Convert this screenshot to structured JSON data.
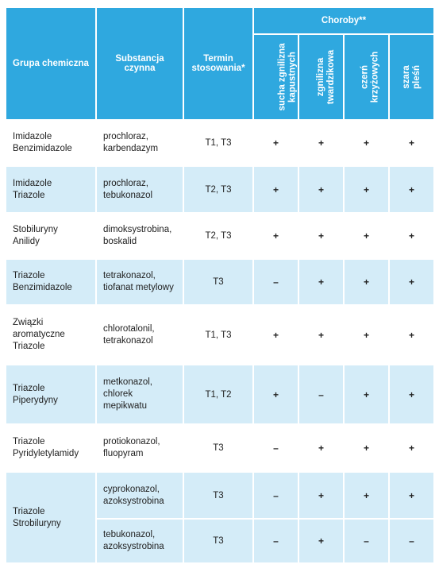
{
  "header": {
    "group": "Grupa chemiczna",
    "substance_line1": "Substancja",
    "substance_line2": "czynna",
    "term_line1": "Termin",
    "term_line2": "stosowania*",
    "diseases": "Choroby**",
    "disease_cols": [
      {
        "line1": "sucha zgnilizna",
        "line2": "kapustnych"
      },
      {
        "line1": "zgnilizna",
        "line2": "twardzikowa"
      },
      {
        "line1": "czerń",
        "line2": "krzyżowych"
      },
      {
        "line1": "szara",
        "line2": "pleśń"
      }
    ]
  },
  "rows": [
    {
      "group": [
        "Imidazole",
        "Benzimidazole"
      ],
      "substance": [
        "prochloraz,",
        "karbendazym"
      ],
      "term": "T1, T3",
      "marks": [
        "+",
        "+",
        "+",
        "+"
      ]
    },
    {
      "group": [
        "Imidazole",
        "Triazole"
      ],
      "substance": [
        "prochloraz,",
        "tebukonazol"
      ],
      "term": "T2, T3",
      "marks": [
        "+",
        "+",
        "+",
        "+"
      ]
    },
    {
      "group": [
        "Stobiluryny",
        "Anilidy"
      ],
      "substance": [
        "dimoksystrobina,",
        "boskalid"
      ],
      "term": "T2, T3",
      "marks": [
        "+",
        "+",
        "+",
        "+"
      ]
    },
    {
      "group": [
        "Triazole",
        "Benzimidazole"
      ],
      "substance": [
        "tetrakonazol,",
        "tiofanat metylowy"
      ],
      "term": "T3",
      "marks": [
        "–",
        "+",
        "+",
        "+"
      ]
    },
    {
      "group": [
        "Związki",
        "aromatyczne",
        "Triazole"
      ],
      "substance": [
        "chlorotalonil,",
        "tetrakonazol"
      ],
      "term": "T1, T3",
      "marks": [
        "+",
        "+",
        "+",
        "+"
      ]
    },
    {
      "group": [
        "Triazole",
        "Piperydyny"
      ],
      "substance": [
        "metkonazol,",
        "chlorek",
        "mepikwatu"
      ],
      "term": "T1, T2",
      "marks": [
        "+",
        "–",
        "+",
        "+"
      ]
    },
    {
      "group": [
        "Triazole",
        "Pyridyletylamidy"
      ],
      "substance": [
        "protiokonazol,",
        "fluopyram"
      ],
      "term": "T3",
      "marks": [
        "–",
        "+",
        "+",
        "+"
      ]
    },
    {
      "group": [
        "Triazole",
        "Strobiluryny"
      ],
      "substance": [
        "cyprokonazol,",
        "azoksystrobina"
      ],
      "term": "T3",
      "marks": [
        "–",
        "+",
        "+",
        "+"
      ]
    },
    {
      "substance": [
        "tebukonazol,",
        "azoksystrobina"
      ],
      "term": "T3",
      "marks": [
        "–",
        "+",
        "–",
        "–"
      ]
    }
  ]
}
